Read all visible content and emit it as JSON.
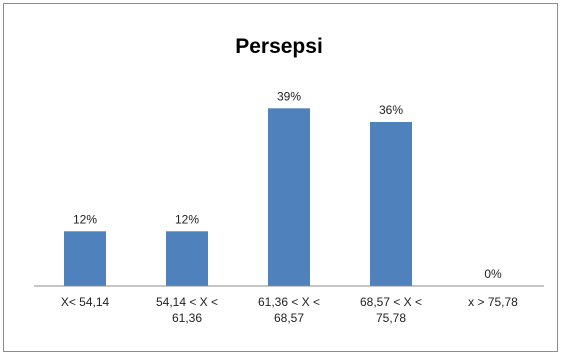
{
  "chart_data": {
    "type": "bar",
    "title": "Persepsi",
    "categories": [
      [
        "X< 54,14"
      ],
      [
        "54,14 < X <",
        "61,36"
      ],
      [
        "61,36 < X <",
        "68,57"
      ],
      [
        "68,57 < X <",
        "75,78"
      ],
      [
        "x > 75,78"
      ]
    ],
    "values": [
      12,
      12,
      39,
      36,
      0
    ],
    "data_labels": [
      "12%",
      "12%",
      "39%",
      "36%",
      "0%"
    ],
    "ylim": [
      0,
      45
    ],
    "grid": false,
    "bar_color": "#4f81bd",
    "xlabel": "",
    "ylabel": ""
  }
}
